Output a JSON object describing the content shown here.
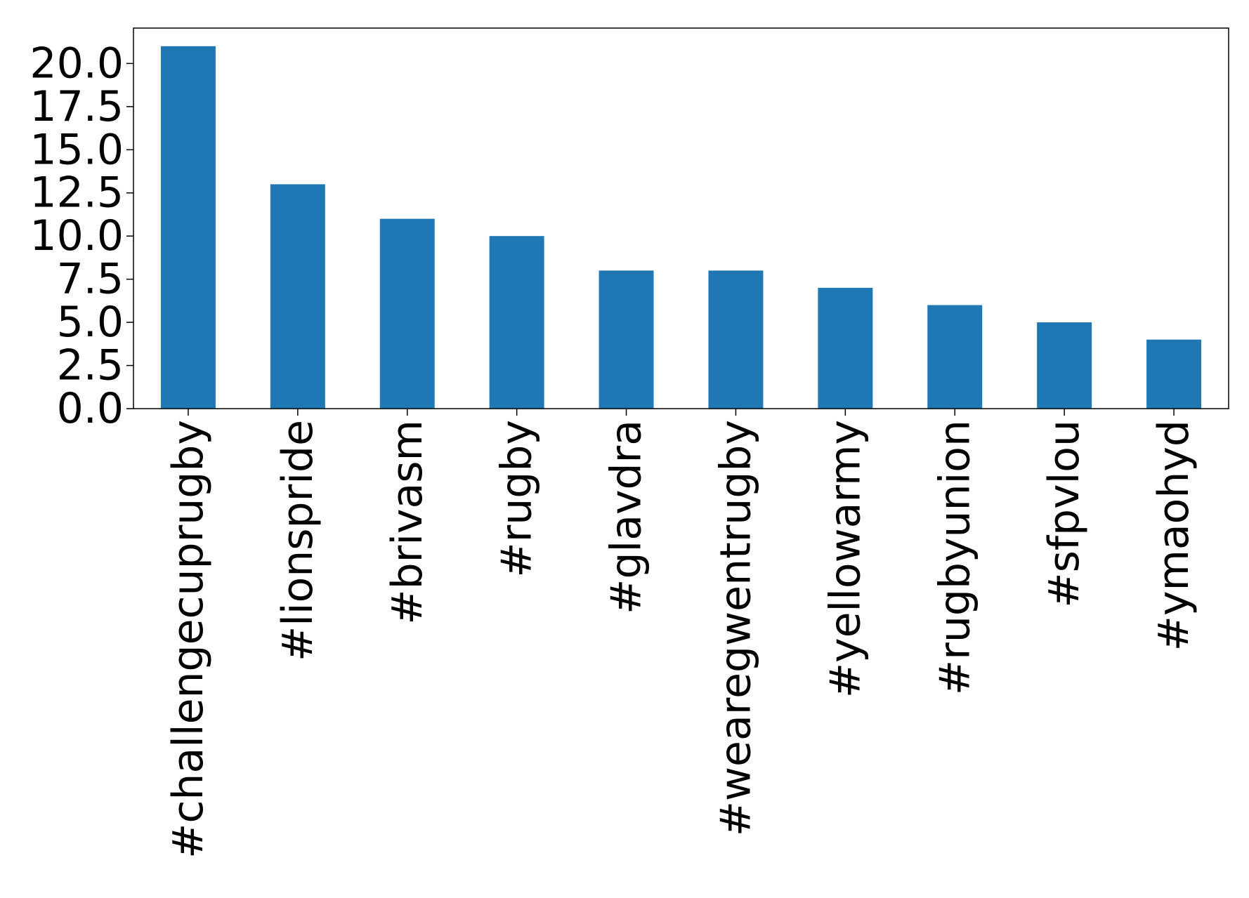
{
  "chart_data": {
    "type": "bar",
    "title": "",
    "xlabel": "",
    "ylabel": "",
    "categories": [
      "#challengecuprugby",
      "#lionspride",
      "#brivasm",
      "#rugby",
      "#glavdra",
      "#wearegwentrugby",
      "#yellowarmy",
      "#rugbyunion",
      "#sfpvlou",
      "#ymaohyd"
    ],
    "values": [
      21,
      13,
      11,
      10,
      8,
      8,
      7,
      6,
      5,
      4
    ],
    "ylim": [
      0,
      22.05
    ],
    "yticks": [
      "0.0",
      "2.5",
      "5.0",
      "7.5",
      "10.0",
      "12.5",
      "15.0",
      "17.5",
      "20.0"
    ],
    "grid": false,
    "legend": "none",
    "bar_color": "#1f77b4"
  }
}
